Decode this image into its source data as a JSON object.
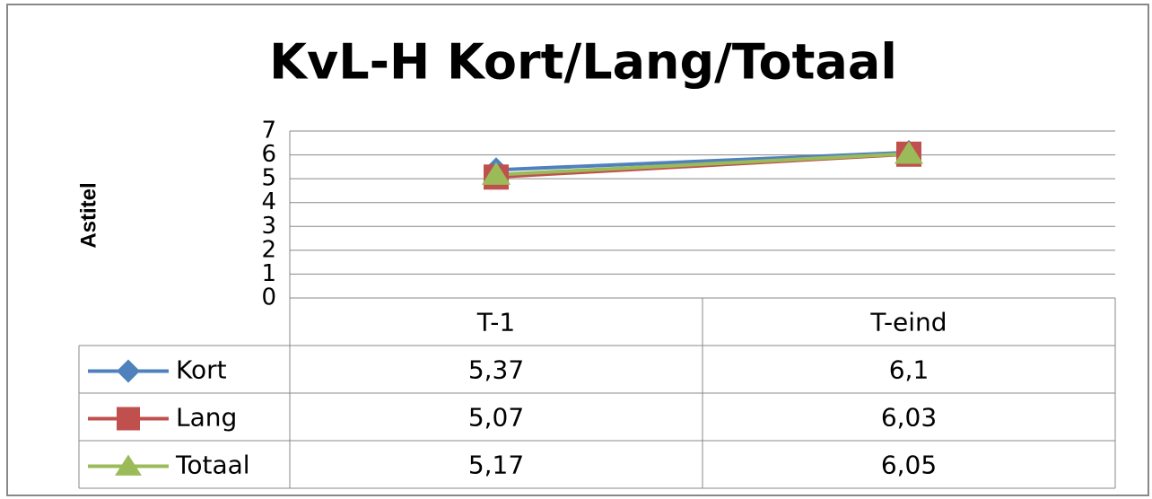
{
  "chart_data": {
    "type": "line",
    "title": "KvL-H Kort/Lang/Totaal",
    "y_label": "Astitel",
    "categories": [
      "T-1",
      "T-eind"
    ],
    "series": [
      {
        "name": "Kort",
        "color": "#4f81bd",
        "marker": "diamond",
        "values": [
          5.37,
          6.1
        ],
        "value_labels": [
          "5,37",
          "6,1"
        ]
      },
      {
        "name": "Lang",
        "color": "#c0504d",
        "marker": "square",
        "values": [
          5.07,
          6.03
        ],
        "value_labels": [
          "5,07",
          "6,03"
        ]
      },
      {
        "name": "Totaal",
        "color": "#9bbb59",
        "marker": "triangle",
        "values": [
          5.17,
          6.05
        ],
        "value_labels": [
          "5,17",
          "6,05"
        ]
      }
    ],
    "ylim": [
      0,
      7
    ],
    "yticks": [
      0,
      1,
      2,
      3,
      4,
      5,
      6,
      7
    ],
    "grid": true,
    "data_table": true
  }
}
